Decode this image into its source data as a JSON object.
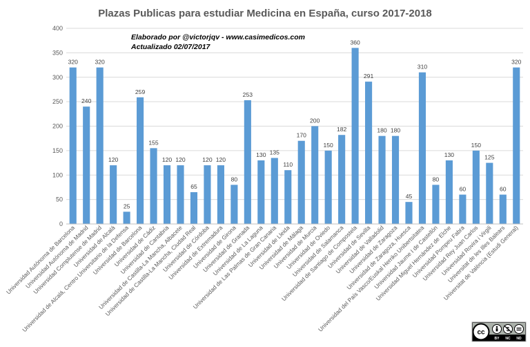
{
  "chart_data": {
    "type": "bar",
    "title": "Plazas Publicas para estudiar Medicina en España, curso 2017-2018",
    "annotation": [
      "Elaborado por @victorjqv - www.casimedicos.com",
      "Actualizado 02/07/2017"
    ],
    "xlabel": "",
    "ylabel": "",
    "ylim": [
      0,
      400
    ],
    "yticks": [
      0,
      50,
      100,
      150,
      200,
      250,
      300,
      350,
      400
    ],
    "grid": true,
    "legend": "none",
    "bar_color": "#5b9bd5",
    "categories": [
      "Universidad Autónoma de Barcelona",
      "Universidad Autónoma de Madrid",
      "Universidad Complutense de Madrid",
      "Universidad de Alcalá",
      "Universidad de Alcalá, Centro Universitario de la Defensa",
      "Universidad de Barcelona",
      "Universidad de Cádiz",
      "Universidad de Cantabria",
      "Universidad de Castilla-La Mancha, Albacete",
      "Universidad de Castilla-La Mancha, Ciudad Real",
      "Universidad de Córdoba",
      "Universidad de Extremadura",
      "Universidad de Girona",
      "Universidad de Granada",
      "Universidad de La Laguna",
      "Universidad de Las Palmas de Gran Canaria",
      "Universidad de Lleida",
      "Universidad de Málaga",
      "Universidad de Murcia",
      "Universidad de Oviedo",
      "Universidad de Salamanca",
      "Universidad de Santiago de Compostela",
      "Universidad de Sevilla",
      "Universidad de Valladolid",
      "Universidad de Zaragoza",
      "Universidad de Zaragoza, Huesca",
      "Universidad del País Vasco/Euskal Herriko Unibertsitatea",
      "Universidad Jaume I de Castellón",
      "Universidad Miguel Hernández de Elche",
      "Universidad Pompeu Fabra",
      "Universidad Rey Juan Carlos",
      "Universidad Rovira i Virgili",
      "Universitat de les Illes Balears",
      "Universitat de València (Estudi General)"
    ],
    "values": [
      320,
      240,
      320,
      120,
      25,
      259,
      155,
      120,
      120,
      65,
      120,
      120,
      80,
      253,
      130,
      135,
      110,
      170,
      200,
      150,
      182,
      360,
      291,
      180,
      180,
      45,
      310,
      80,
      130,
      60,
      150,
      125,
      60,
      320
    ]
  },
  "license_badge": {
    "icon": "cc-by-nc-nd-icon",
    "text": [
      "BY",
      "NC",
      "ND"
    ]
  }
}
